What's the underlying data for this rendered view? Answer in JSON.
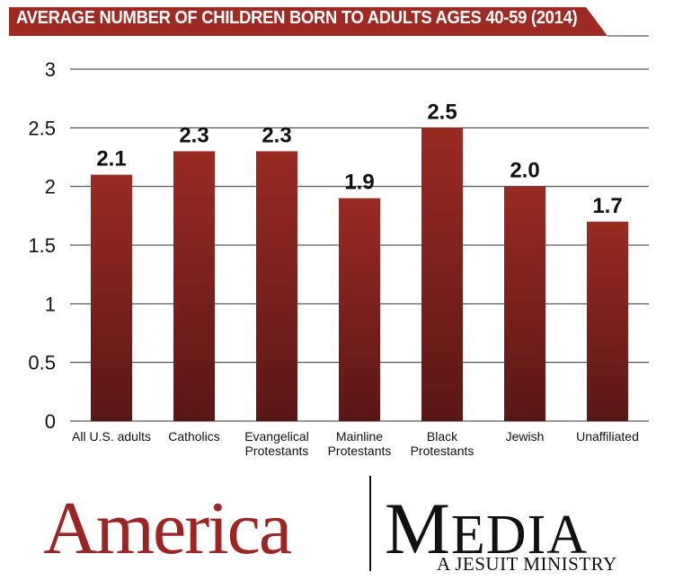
{
  "chart_data": {
    "type": "bar",
    "title": "AVERAGE NUMBER OF CHILDREN BORN TO ADULTS AGES 40-59 (2014)",
    "categories": [
      [
        "All U.S. adults"
      ],
      [
        "Catholics"
      ],
      [
        "Evangelical",
        "Protestants"
      ],
      [
        "Mainline",
        "Protestants"
      ],
      [
        "Black",
        "Protestants"
      ],
      [
        "Jewish"
      ],
      [
        "Unaffiliated"
      ]
    ],
    "values": [
      2.1,
      2.3,
      2.3,
      1.9,
      2.5,
      2.0,
      1.7
    ],
    "data_labels": [
      "2.1",
      "2.3",
      "2.3",
      "1.9",
      "2.5",
      "2.0",
      "1.7"
    ],
    "yticks": [
      "0",
      "0.5",
      "1",
      "1.5",
      "2",
      "2.5",
      "3"
    ],
    "ytick_values": [
      0,
      0.5,
      1,
      1.5,
      2,
      2.5,
      3
    ],
    "ylim": [
      0,
      3
    ],
    "grid": true,
    "colors": {
      "bar_top": "#9a2a22",
      "bar_bottom": "#5a1716",
      "banner": "#9e2a24",
      "grid": "#333333"
    }
  },
  "branding": {
    "america": "America",
    "media_cap": "M",
    "media_rest": "EDIA",
    "tagline": "A JESUIT MINISTRY",
    "colors": {
      "america": "#9c2424",
      "media": "#111111"
    }
  }
}
